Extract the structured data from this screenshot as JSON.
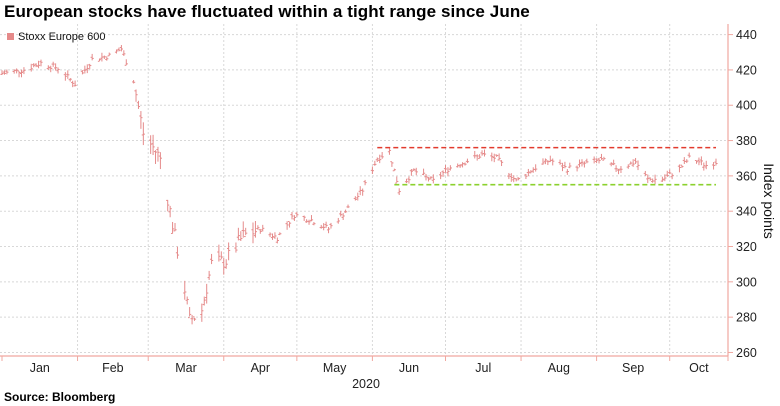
{
  "title": "European stocks have fluctuated within a tight range since June",
  "source": "Source: Bloomberg",
  "colors": {
    "bars": "#e58a8a",
    "resistance": "#e23b2e",
    "support": "#8bd12e",
    "axis": "#f0a8a0",
    "grid": "#d8d8d8"
  },
  "chart_data": {
    "type": "line",
    "ylabel": "Index points",
    "ylim": [
      258,
      446
    ],
    "yticks": [
      260,
      280,
      300,
      320,
      340,
      360,
      380,
      400,
      420,
      440
    ],
    "grid": true,
    "x_unit_label": "2020",
    "x_ticks": [
      "Jan",
      "Feb",
      "Mar",
      "Apr",
      "May",
      "Jun",
      "Jul",
      "Aug",
      "Sep",
      "Oct"
    ],
    "legend": {
      "position": "top-left",
      "entries": [
        "Stoxx Europe 600"
      ]
    },
    "reference_lines": [
      {
        "value": 376,
        "style": "dashed",
        "color": "#e23b2e",
        "from": "2020-06-03",
        "to": "2020-10-20"
      },
      {
        "value": 355,
        "style": "dashed",
        "color": "#8bd12e",
        "from": "2020-06-10",
        "to": "2020-10-20"
      }
    ],
    "x_domain": [
      "2020-01-01",
      "2020-10-20"
    ],
    "series": [
      {
        "name": "Stoxx Europe 600",
        "keypoints": [
          [
            "2020-01-01",
            418
          ],
          [
            "2020-01-10",
            420
          ],
          [
            "2020-01-17",
            424
          ],
          [
            "2020-01-24",
            421
          ],
          [
            "2020-01-31",
            412
          ],
          [
            "2020-02-07",
            426
          ],
          [
            "2020-02-14",
            428
          ],
          [
            "2020-02-19",
            432
          ],
          [
            "2020-02-24",
            414
          ],
          [
            "2020-02-28",
            384
          ],
          [
            "2020-03-06",
            370
          ],
          [
            "2020-03-10",
            340
          ],
          [
            "2020-03-16",
            296
          ],
          [
            "2020-03-18",
            278
          ],
          [
            "2020-03-23",
            284
          ],
          [
            "2020-03-27",
            310
          ],
          [
            "2020-04-02",
            312
          ],
          [
            "2020-04-09",
            326
          ],
          [
            "2020-04-16",
            330
          ],
          [
            "2020-04-23",
            325
          ],
          [
            "2020-04-30",
            338
          ],
          [
            "2020-05-07",
            335
          ],
          [
            "2020-05-14",
            330
          ],
          [
            "2020-05-21",
            340
          ],
          [
            "2020-05-28",
            352
          ],
          [
            "2020-06-03",
            370
          ],
          [
            "2020-06-08",
            374
          ],
          [
            "2020-06-12",
            352
          ],
          [
            "2020-06-18",
            363
          ],
          [
            "2020-06-26",
            357
          ],
          [
            "2020-07-02",
            364
          ],
          [
            "2020-07-09",
            368
          ],
          [
            "2020-07-16",
            372
          ],
          [
            "2020-07-22",
            370
          ],
          [
            "2020-07-30",
            357
          ],
          [
            "2020-08-06",
            364
          ],
          [
            "2020-08-13",
            369
          ],
          [
            "2020-08-20",
            364
          ],
          [
            "2020-08-27",
            367
          ],
          [
            "2020-09-03",
            369
          ],
          [
            "2020-09-10",
            364
          ],
          [
            "2020-09-17",
            368
          ],
          [
            "2020-09-22",
            358
          ],
          [
            "2020-09-28",
            358
          ],
          [
            "2020-10-05",
            364
          ],
          [
            "2020-10-09",
            370
          ],
          [
            "2020-10-13",
            368
          ],
          [
            "2020-10-16",
            366
          ],
          [
            "2020-10-20",
            368
          ]
        ]
      }
    ]
  }
}
